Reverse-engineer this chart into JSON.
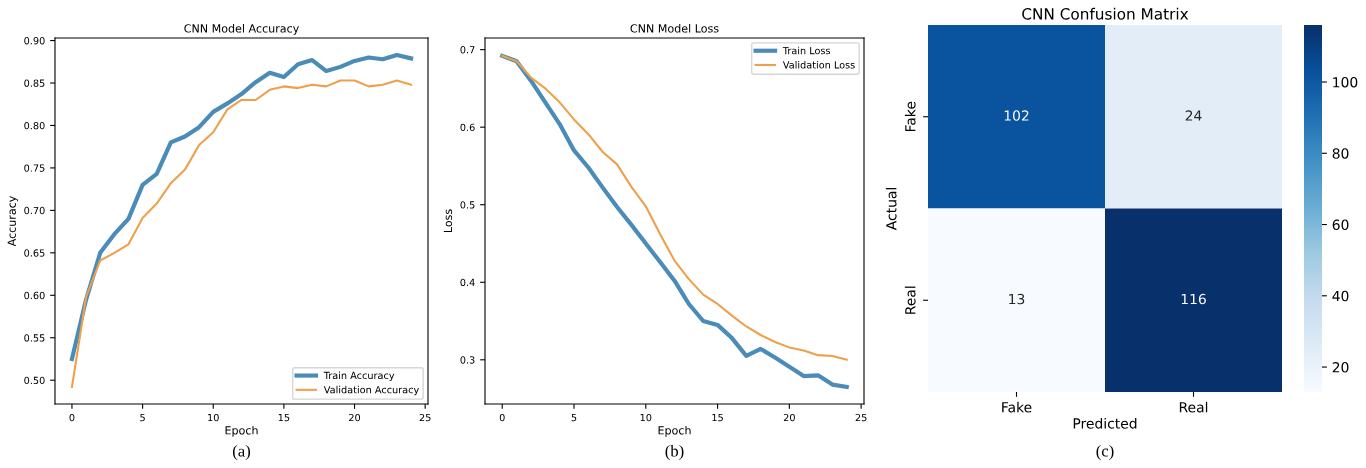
{
  "chart_data": [
    {
      "type": "line",
      "title": "CNN Model Accuracy",
      "xlabel": "Epoch",
      "ylabel": "Accuracy",
      "x": [
        0,
        1,
        2,
        3,
        4,
        5,
        6,
        7,
        8,
        9,
        10,
        11,
        12,
        13,
        14,
        15,
        16,
        17,
        18,
        19,
        20,
        21,
        22,
        23,
        24
      ],
      "series": [
        {
          "name": "Train Accuracy",
          "color": "#4a8bb8",
          "values": [
            0.525,
            0.595,
            0.65,
            0.672,
            0.69,
            0.73,
            0.743,
            0.78,
            0.787,
            0.798,
            0.816,
            0.826,
            0.837,
            0.851,
            0.862,
            0.857,
            0.872,
            0.877,
            0.864,
            0.869,
            0.876,
            0.88,
            0.878,
            0.883,
            0.879
          ]
        },
        {
          "name": "Validation Accuracy",
          "color": "#eea04a",
          "values": [
            0.492,
            0.598,
            0.641,
            0.65,
            0.66,
            0.691,
            0.708,
            0.732,
            0.748,
            0.777,
            0.792,
            0.819,
            0.83,
            0.83,
            0.842,
            0.846,
            0.844,
            0.848,
            0.846,
            0.853,
            0.853,
            0.846,
            0.848,
            0.853,
            0.848
          ]
        }
      ],
      "xlim": [
        -1.2,
        25.2
      ],
      "xticks": [
        0,
        5,
        10,
        15,
        20,
        25
      ],
      "ylim": [
        0.472,
        0.903
      ],
      "yticks": [
        {
          "value": 0.5,
          "label": "0.50"
        },
        {
          "value": 0.55,
          "label": "0.55"
        },
        {
          "value": 0.6,
          "label": "0.60"
        },
        {
          "value": 0.65,
          "label": "0.65"
        },
        {
          "value": 0.7,
          "label": "0.70"
        },
        {
          "value": 0.75,
          "label": "0.75"
        },
        {
          "value": 0.8,
          "label": "0.80"
        },
        {
          "value": 0.85,
          "label": "0.85"
        },
        {
          "value": 0.9,
          "label": "0.90"
        }
      ],
      "grid": false,
      "legend": "bottom right",
      "line_style": "solid",
      "marker": "none",
      "annotations": [
        "(a)"
      ]
    },
    {
      "type": "line",
      "title": "CNN Model Loss",
      "xlabel": "Epoch",
      "ylabel": "Loss",
      "x": [
        0,
        1,
        2,
        3,
        4,
        5,
        6,
        7,
        8,
        9,
        10,
        11,
        12,
        13,
        14,
        15,
        16,
        17,
        18,
        19,
        20,
        21,
        22,
        23,
        24
      ],
      "series": [
        {
          "name": "Train Loss",
          "color": "#4a8bb8",
          "values": [
            0.692,
            0.685,
            0.66,
            0.632,
            0.604,
            0.57,
            0.548,
            0.522,
            0.497,
            0.474,
            0.45,
            0.426,
            0.402,
            0.372,
            0.35,
            0.345,
            0.328,
            0.305,
            0.314,
            0.303,
            0.291,
            0.279,
            0.28,
            0.268,
            0.265
          ]
        },
        {
          "name": "Validation Loss",
          "color": "#eea04a",
          "values": [
            0.692,
            0.685,
            0.664,
            0.65,
            0.632,
            0.61,
            0.591,
            0.568,
            0.552,
            0.523,
            0.498,
            0.462,
            0.428,
            0.404,
            0.384,
            0.372,
            0.357,
            0.343,
            0.332,
            0.323,
            0.316,
            0.312,
            0.306,
            0.305,
            0.3
          ]
        }
      ],
      "xlim": [
        -1.2,
        25.2
      ],
      "xticks": [
        0,
        5,
        10,
        15,
        20,
        25
      ],
      "ylim": [
        0.243,
        0.715
      ],
      "yticks": [
        0.3,
        0.4,
        0.5,
        0.6,
        0.7
      ],
      "grid": false,
      "legend": "top right",
      "line_style": "solid",
      "marker": "none",
      "annotations": [
        "(b)"
      ]
    },
    {
      "type": "heatmap",
      "title": "CNN Confusion Matrix",
      "xlabel": "Predicted",
      "ylabel": "Actual",
      "categories": [
        "Fake",
        "Real"
      ],
      "y_categories": [
        "Fake",
        "Real"
      ],
      "cells": [
        [
          102,
          24
        ],
        [
          13,
          116
        ]
      ],
      "data_labels": true,
      "clim": [
        13,
        116
      ],
      "cticks": [
        20,
        40,
        60,
        80,
        100
      ],
      "annotations": [
        "(c)"
      ]
    }
  ]
}
